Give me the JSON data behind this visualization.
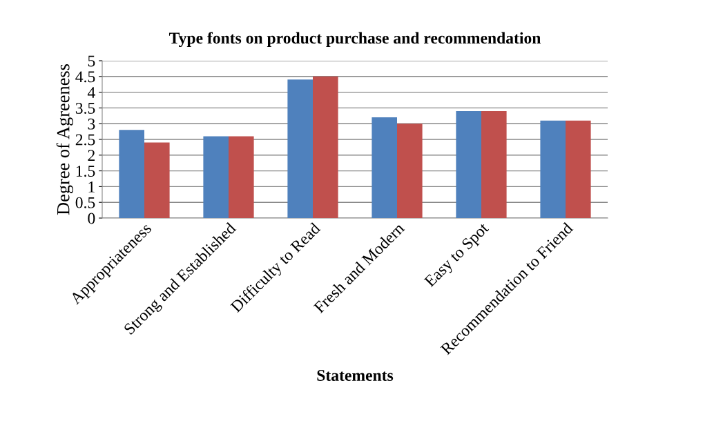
{
  "chart_data": {
    "type": "bar",
    "title": "Type fonts on product purchase and recommendation",
    "xlabel": "Statements",
    "ylabel": "Degree of Agreeness",
    "categories": [
      "Appropriateness",
      "Strong and Established",
      "Difficulty to Read",
      "Fresh and Modern",
      "Easy to Spot",
      "Recommendation to Friend"
    ],
    "series": [
      {
        "color": "#4f81bd",
        "values": [
          2.8,
          2.6,
          4.4,
          3.2,
          3.4,
          3.1
        ]
      },
      {
        "color": "#c0504d",
        "values": [
          2.4,
          2.6,
          4.5,
          3.0,
          3.4,
          3.1
        ]
      }
    ],
    "ylim": [
      0,
      5
    ],
    "yticks": [
      0,
      0.5,
      1,
      1.5,
      2,
      2.5,
      3,
      3.5,
      4,
      4.5,
      5
    ],
    "grid": "y"
  }
}
